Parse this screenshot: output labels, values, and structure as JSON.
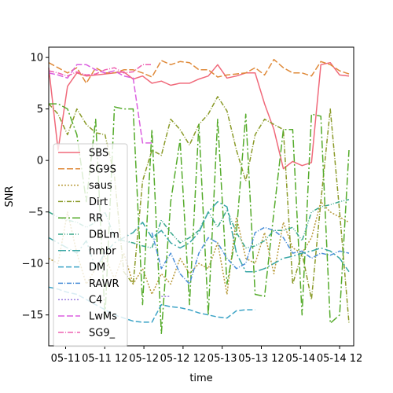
{
  "chart_data": {
    "type": "line",
    "title": "",
    "xlabel": "time",
    "ylabel": "SNR",
    "xlim": [
      0,
      32.5
    ],
    "ylim": [
      -18.0,
      11.0
    ],
    "x_tick_labels": [
      "05-11",
      "05-11 12",
      "05-12",
      "05-12 12",
      "05-13",
      "05-13 12",
      "05-14",
      "05-14 12"
    ],
    "y_ticks": [
      -15,
      -10,
      -5,
      0,
      5,
      10
    ],
    "y_tick_labels": [
      "−15",
      "−10",
      "−5",
      "0",
      "5",
      "10"
    ],
    "grid": false,
    "legend": "center-left",
    "series": [
      {
        "name": "SBS",
        "color": "#f0697a",
        "dash": "solid",
        "x": [
          0,
          1,
          2,
          3,
          4,
          5,
          6,
          7,
          8,
          9,
          10,
          11,
          12,
          13,
          14,
          15,
          16,
          17,
          18,
          19,
          20,
          21,
          22,
          23,
          24,
          25,
          26,
          27,
          28,
          29,
          30,
          31,
          32
        ],
        "y": [
          9.0,
          1.0,
          7.2,
          8.5,
          8.2,
          8.3,
          8.4,
          8.5,
          8.6,
          7.9,
          8.2,
          7.5,
          7.7,
          7.3,
          7.5,
          7.5,
          7.9,
          8.2,
          9.3,
          8.0,
          8.2,
          8.5,
          8.5,
          5.5,
          3.0,
          -0.8,
          -0.1,
          -0.5,
          -0.2,
          9.3,
          9.5,
          8.3,
          8.2
        ]
      },
      {
        "name": "SG9S",
        "color": "#df8a3a",
        "dash": "8,3",
        "x": [
          0,
          1,
          2,
          3,
          4,
          5,
          6,
          7,
          8,
          9,
          10,
          11,
          12,
          13,
          14,
          15,
          16,
          17,
          18,
          19,
          20,
          21,
          22,
          23,
          24,
          25,
          26,
          27,
          28,
          29,
          30,
          31,
          32
        ],
        "y": [
          9.5,
          9.0,
          8.5,
          9.0,
          7.5,
          9.0,
          8.5,
          8.5,
          8.8,
          8.8,
          8.5,
          8.1,
          9.7,
          9.3,
          9.6,
          9.5,
          8.8,
          8.8,
          8.1,
          8.3,
          8.4,
          8.5,
          9.0,
          8.3,
          9.8,
          9.0,
          8.5,
          8.5,
          8.2,
          9.6,
          9.3,
          8.7,
          8.4
        ]
      },
      {
        "name": "saus",
        "color": "#b89a3a",
        "dash": "2,2",
        "x": [
          0,
          1,
          2,
          3,
          4,
          5,
          6,
          7,
          8,
          9,
          10,
          11,
          12,
          13,
          14,
          15,
          16,
          17,
          18,
          19,
          20,
          21,
          22,
          23,
          24,
          25,
          26,
          27,
          28,
          29,
          30,
          31,
          32
        ],
        "y": [
          -9.5,
          -10.0,
          -5.0,
          -9.0,
          -12.0,
          -10.5,
          -9.3,
          -11.5,
          -9.0,
          -12.0,
          -10.5,
          -13.0,
          -11.0,
          -12.0,
          -9.5,
          -11.0,
          -10.0,
          -10.5,
          -8.0,
          -13.0,
          -5.5,
          -9.5,
          -10.0,
          -7.0,
          -11.0,
          -6.0,
          -8.5,
          -9.0,
          -7.5,
          -4.0,
          -5.0,
          -5.5,
          -6.0
        ]
      },
      {
        "name": "Dirt",
        "color": "#8a9a28",
        "dash": "6,2,1,2",
        "x": [
          0,
          1,
          2,
          3,
          4,
          5,
          6,
          7,
          8,
          9,
          10,
          11,
          12,
          13,
          14,
          15,
          16,
          17,
          18,
          19,
          20,
          21,
          22,
          23,
          24,
          25,
          26,
          27,
          28,
          29,
          30,
          31,
          32
        ],
        "y": [
          5.5,
          4.5,
          2.5,
          5.0,
          3.5,
          2.7,
          2.5,
          -1.5,
          -10.8,
          -12.0,
          -2.0,
          1.0,
          0.5,
          4.0,
          3.0,
          1.5,
          3.5,
          4.5,
          6.2,
          4.8,
          1.0,
          -2.0,
          2.5,
          4.0,
          3.5,
          3.0,
          -12.0,
          -9.0,
          -13.5,
          -4.0,
          5.0,
          -5.0,
          -15.8
        ]
      },
      {
        "name": "RR",
        "color": "#55ab2b",
        "dash": "10,3,2,3",
        "x": [
          0,
          1,
          2,
          3,
          4,
          5,
          6,
          7,
          8,
          9,
          10,
          11,
          12,
          13,
          14,
          15,
          16,
          17,
          18,
          19,
          20,
          21,
          22,
          23,
          24,
          25,
          26,
          27,
          28,
          29,
          30,
          31,
          32
        ],
        "y": [
          5.5,
          5.5,
          5.0,
          2.5,
          -4.0,
          4.0,
          -15.3,
          5.2,
          5.0,
          5.0,
          -14.0,
          3.0,
          -16.8,
          -4.0,
          2.0,
          -14.0,
          3.5,
          -15.0,
          4.0,
          -12.0,
          -7.0,
          4.5,
          -13.0,
          -13.2,
          -5.0,
          3.0,
          3.0,
          -15.0,
          4.5,
          4.3,
          -15.8,
          -15.0,
          1.0
        ]
      },
      {
        "name": "DBLm",
        "color": "#3aa88c",
        "dash": "6,2,1,2,1,2",
        "x": [
          0,
          1,
          2,
          3,
          4,
          5,
          6,
          7,
          8,
          9,
          10,
          11,
          12,
          13,
          14,
          15,
          16,
          17,
          18,
          19,
          20,
          21,
          22,
          23,
          24,
          25,
          26,
          27,
          28,
          29,
          30,
          31,
          32
        ],
        "y": [
          -5.0,
          -5.5,
          -5.8,
          -6.0,
          -6.5,
          -6.0,
          -5.0,
          -7.5,
          -7.8,
          -8.0,
          -8.3,
          -8.5,
          -5.8,
          -7.0,
          -8.0,
          -7.5,
          -6.8,
          -5.0,
          -6.5,
          -4.8,
          -7.0,
          -8.5,
          -8.3,
          -7.8,
          -6.8,
          -6.8,
          -6.5,
          -7.8,
          -5.0,
          -4.5,
          -4.3,
          -4.0,
          -3.8
        ]
      },
      {
        "name": "hmbr",
        "color": "#38a6a5",
        "dash": "10,3,2,3",
        "x": [
          0,
          1,
          2,
          3,
          4,
          5,
          6,
          7,
          8,
          9,
          10,
          11,
          12,
          13,
          14,
          15,
          16,
          17,
          18,
          19,
          20,
          21,
          22,
          23,
          24,
          25,
          26,
          27,
          28,
          29,
          30,
          31,
          32
        ],
        "y": [
          -7.5,
          -8.0,
          -8.5,
          -9.0,
          -7.8,
          -10.5,
          -9.0,
          -8.0,
          -7.5,
          -7.0,
          -6.0,
          -7.5,
          -6.8,
          -8.0,
          -8.5,
          -8.0,
          -7.0,
          -5.0,
          -4.0,
          -4.5,
          -9.0,
          -10.8,
          -10.8,
          -10.5,
          -10.0,
          -9.5,
          -9.3,
          -9.0,
          -8.8,
          -8.5,
          -8.8,
          -9.5,
          -10.8
        ]
      },
      {
        "name": "DM",
        "color": "#3ba3c6",
        "dash": "7,3",
        "x": [
          0,
          1,
          2,
          3,
          4,
          5,
          6,
          7,
          8,
          9,
          10,
          11,
          12,
          13,
          14,
          15,
          16,
          17,
          18,
          19,
          20,
          21,
          22
        ],
        "y": [
          -12.3,
          -12.5,
          -12.8,
          -13.0,
          -13.5,
          -14.0,
          -14.5,
          -15.0,
          -15.3,
          -15.6,
          -15.7,
          -15.7,
          -14.0,
          -14.2,
          -14.3,
          -14.5,
          -14.8,
          -15.0,
          -15.2,
          -15.3,
          -14.6,
          -14.5,
          -14.5
        ]
      },
      {
        "name": "RAWR",
        "color": "#4b8fd8",
        "dash": "6,2,1,2",
        "x": [
          11,
          12,
          13,
          14,
          15,
          16,
          17,
          18,
          19,
          20,
          21,
          22,
          23,
          24,
          25,
          26,
          27,
          28,
          29,
          30,
          31,
          32
        ],
        "y": [
          -7.0,
          -10.5,
          -9.0,
          -11.0,
          -12.0,
          -9.0,
          -7.5,
          -8.0,
          -9.5,
          -10.5,
          -10.0,
          -7.0,
          -6.5,
          -6.8,
          -7.5,
          -9.0,
          -8.8,
          -9.5,
          -9.0,
          -9.2,
          -8.8,
          -9.0
        ]
      },
      {
        "name": "C4",
        "color": "#9b7de0",
        "dash": "2,2",
        "x": [
          12,
          13
        ],
        "y": [
          -13.2,
          -13.2
        ]
      },
      {
        "name": "LwMs",
        "color": "#db5fe0",
        "dash": "8,3",
        "x": [
          0,
          1,
          2,
          3,
          4,
          5,
          6,
          7,
          8,
          9,
          10,
          11
        ],
        "y": [
          8.5,
          8.3,
          8.0,
          9.3,
          9.3,
          8.8,
          8.5,
          8.7,
          8.2,
          8.0,
          1.7,
          1.7
        ]
      },
      {
        "name": "SG9_",
        "color": "#ee5fb0",
        "dash": "7,2,1,2",
        "x": [
          0,
          1,
          2,
          3,
          4,
          5,
          6,
          7,
          8,
          9,
          10,
          11
        ],
        "y": [
          8.7,
          8.5,
          8.2,
          8.6,
          8.3,
          8.4,
          8.8,
          9.0,
          8.5,
          8.6,
          9.3,
          9.3
        ]
      }
    ]
  }
}
